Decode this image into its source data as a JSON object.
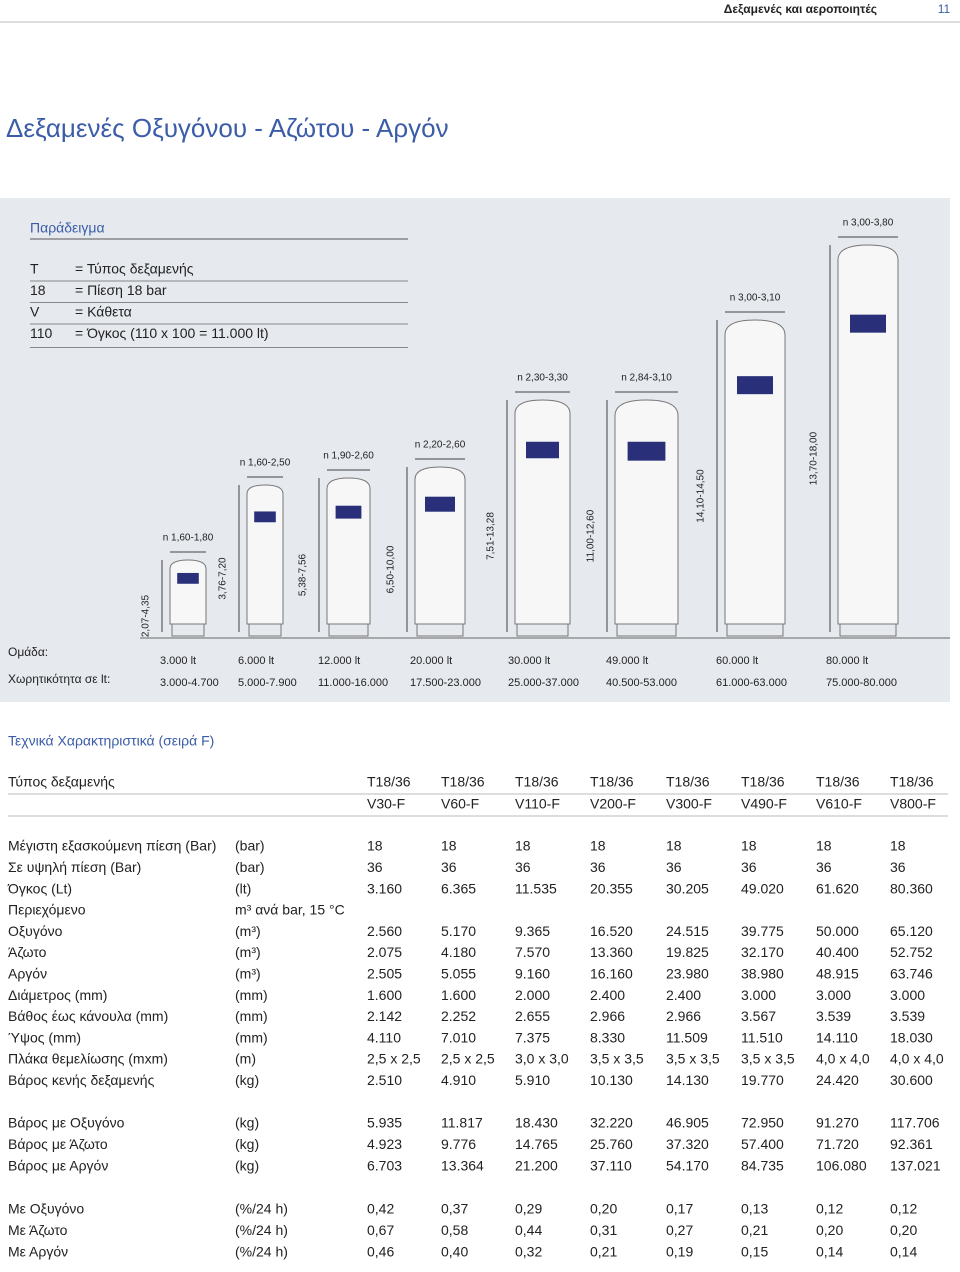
{
  "header": {
    "section": "Δεξαμενές και αεροποιητές",
    "page": "11"
  },
  "title": "Δεξαμενές Οξυγόνου - Αζώτου - Αργόν",
  "example": {
    "title": "Παράδειγμα",
    "rows": [
      [
        "T",
        "= Τύπος δεξαμενής"
      ],
      [
        "18",
        "= Πίεση 18 bar"
      ],
      [
        "V",
        "= Κάθετα"
      ],
      [
        "110",
        "= Όγκος (110 x 100 = 11.000 lt)"
      ]
    ]
  },
  "tanks": [
    {
      "diameter": "n 1,60-1,80",
      "height": "2,07-4,35"
    },
    {
      "diameter": "n 1,60-2,50",
      "height": "3,76-7,20"
    },
    {
      "diameter": "n 1,90-2,60",
      "height": "5,38-7,56"
    },
    {
      "diameter": "n 2,20-2,60",
      "height": "6,50-10,00"
    },
    {
      "diameter": "n 2,30-3,30",
      "height": "7,51-13,28"
    },
    {
      "diameter": "n 2,84-3,10",
      "height": "11,00-12,60"
    },
    {
      "diameter": "n 3,00-3,10",
      "height": "14,10-14,50"
    },
    {
      "diameter": "n 3,00-3,80",
      "height": "13,70-18,00"
    }
  ],
  "groups": {
    "label": "Ομάδα:",
    "values": [
      "3.000 lt",
      "6.000 lt",
      "12.000 lt",
      "20.000 lt",
      "30.000 lt",
      "49.000 lt",
      "60.000 lt",
      "80.000 lt"
    ]
  },
  "capacity": {
    "label": "Χωρητικότητα σε lt:",
    "values": [
      "3.000-4.700",
      "5.000-7.900",
      "11.000-16.000",
      "17.500-23.000",
      "25.000-37.000",
      "40.500-53.000",
      "61.000-63.000",
      "75.000-80.000"
    ]
  },
  "specs": {
    "title": "Τεχνικά Χαρακτηριστικά (σειρά F)",
    "type_label": "Τύπος δεξαμενής",
    "models": [
      [
        "T18/36",
        "V30-F"
      ],
      [
        "T18/36",
        "V60-F"
      ],
      [
        "T18/36",
        "V110-F"
      ],
      [
        "T18/36",
        "V200-F"
      ],
      [
        "T18/36",
        "V300-F"
      ],
      [
        "T18/36",
        "V490-F"
      ],
      [
        "T18/36",
        "V610-F"
      ],
      [
        "T18/36",
        "V800-F"
      ]
    ],
    "sections": [
      [
        {
          "label": "Μέγιστη εξασκούμενη πίεση (Bar)",
          "unit": "(bar)",
          "values": [
            "18",
            "18",
            "18",
            "18",
            "18",
            "18",
            "18",
            "18"
          ]
        },
        {
          "label": "Σε υψηλή πίεση (Bar)",
          "unit": "(bar)",
          "values": [
            "36",
            "36",
            "36",
            "36",
            "36",
            "36",
            "36",
            "36"
          ]
        },
        {
          "label": "Όγκος (Lt)",
          "unit": "(lt)",
          "values": [
            "3.160",
            "6.365",
            "11.535",
            "20.355",
            "30.205",
            "49.020",
            "61.620",
            "80.360"
          ]
        },
        {
          "label": "Περιεχόμενο",
          "unit": "m³ ανά bar, 15 °C",
          "values": []
        },
        {
          "label": "Οξυγόνο",
          "unit": "(m³)",
          "values": [
            "2.560",
            "5.170",
            "9.365",
            "16.520",
            "24.515",
            "39.775",
            "50.000",
            "65.120"
          ]
        },
        {
          "label": "Άζωτο",
          "unit": "(m³)",
          "values": [
            "2.075",
            "4.180",
            "7.570",
            "13.360",
            "19.825",
            "32.170",
            "40.400",
            "52.752"
          ]
        },
        {
          "label": "Αργόν",
          "unit": "(m³)",
          "values": [
            "2.505",
            "5.055",
            "9.160",
            "16.160",
            "23.980",
            "38.980",
            "48.915",
            "63.746"
          ]
        },
        {
          "label": "Διάμετρος (mm)",
          "unit": "(mm)",
          "values": [
            "1.600",
            "1.600",
            "2.000",
            "2.400",
            "2.400",
            "3.000",
            "3.000",
            "3.000"
          ]
        },
        {
          "label": "Βάθος έως κάνουλα (mm)",
          "unit": "(mm)",
          "values": [
            "2.142",
            "2.252",
            "2.655",
            "2.966",
            "2.966",
            "3.567",
            "3.539",
            "3.539"
          ]
        },
        {
          "label": "Ύψος (mm)",
          "unit": "(mm)",
          "values": [
            "4.110",
            "7.010",
            "7.375",
            "8.330",
            "11.509",
            "11.510",
            "14.110",
            "18.030"
          ]
        },
        {
          "label": "Πλάκα θεμελίωσης (mxm)",
          "unit": "(m)",
          "values": [
            "2,5 x 2,5",
            "2,5 x 2,5",
            "3,0 x 3,0",
            "3,5 x 3,5",
            "3,5 x 3,5",
            "3,5 x 3,5",
            "4,0 x 4,0",
            "4,0 x 4,0"
          ]
        },
        {
          "label": "Βάρος κενής δεξαμενής",
          "unit": "(kg)",
          "values": [
            "2.510",
            "4.910",
            "5.910",
            "10.130",
            "14.130",
            "19.770",
            "24.420",
            "30.600"
          ]
        }
      ],
      [
        {
          "label": "Βάρος με Οξυγόνο",
          "unit": "(kg)",
          "values": [
            "5.935",
            "11.817",
            "18.430",
            "32.220",
            "46.905",
            "72.950",
            "91.270",
            "117.706"
          ]
        },
        {
          "label": "Βάρος με Άζωτο",
          "unit": "(kg)",
          "values": [
            "4.923",
            "9.776",
            "14.765",
            "25.760",
            "37.320",
            "57.400",
            "71.720",
            "92.361"
          ]
        },
        {
          "label": "Βάρος με Αργόν",
          "unit": "(kg)",
          "values": [
            "6.703",
            "13.364",
            "21.200",
            "37.110",
            "54.170",
            "84.735",
            "106.080",
            "137.021"
          ]
        }
      ],
      [
        {
          "label": "Με Οξυγόνο",
          "unit": "(%/24 h)",
          "values": [
            "0,42",
            "0,37",
            "0,29",
            "0,20",
            "0,17",
            "0,13",
            "0,12",
            "0,12"
          ]
        },
        {
          "label": "Με Άζωτο",
          "unit": "(%/24 h)",
          "values": [
            "0,67",
            "0,58",
            "0,44",
            "0,31",
            "0,27",
            "0,21",
            "0,20",
            "0,20"
          ]
        },
        {
          "label": "Με Αργόν",
          "unit": "(%/24 h)",
          "values": [
            "0,46",
            "0,40",
            "0,32",
            "0,21",
            "0,19",
            "0,15",
            "0,14",
            "0,14"
          ]
        }
      ]
    ]
  }
}
